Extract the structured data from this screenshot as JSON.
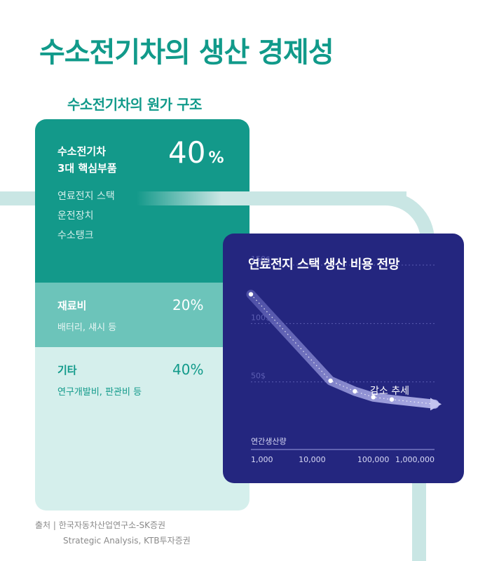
{
  "title": "수소전기차의 생산 경제성",
  "subtitle": "수소전기차의 원가 구조",
  "cost_structure": {
    "segments": [
      {
        "label_line1": "수소전기차",
        "label_line2": "3대 핵심부품",
        "percent_value": "40",
        "percent_sign": "%",
        "items": [
          "연료전지 스택",
          "운전장치",
          "수소탱크"
        ]
      },
      {
        "label": "재료비",
        "percent": "20%",
        "sub": "배터리, 섀시 등"
      },
      {
        "label": "기타",
        "percent": "40%",
        "sub": "연구개발비, 판관비 등"
      }
    ]
  },
  "colors": {
    "teal": "#13998a",
    "teal_light": "#6cc4ba",
    "teal_pale": "#d5efec",
    "navy": "#24267f"
  },
  "chart_data": {
    "type": "line",
    "title": "연료전지 스택 생산 비용 전망",
    "xlabel": "연간생산량",
    "x_scale": "log",
    "x_ticks": [
      "1,000",
      "10,000",
      "100,000",
      "1,000,000"
    ],
    "y_ticks": [
      "150$",
      "100$",
      "50$"
    ],
    "ylim": [
      0,
      150
    ],
    "grid": true,
    "annotation": "감소 추세",
    "series": [
      {
        "x": [
          1000,
          20000,
          50000,
          100000,
          200000,
          1000000
        ],
        "y": [
          125,
          51,
          42,
          37,
          35,
          31
        ]
      }
    ]
  },
  "source": {
    "label": "출처",
    "separator": "|",
    "line1": "한국자동차산업연구소-SK증권",
    "line2": "Strategic Analysis, KTB투자증권"
  }
}
